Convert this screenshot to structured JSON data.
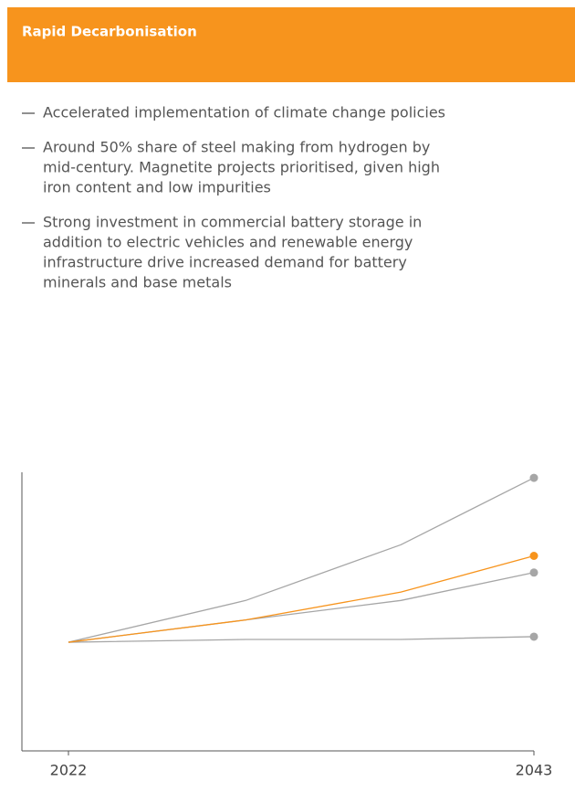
{
  "header": {
    "title": "Rapid Decarbonisation"
  },
  "bullets": [
    [
      "Accelerated implementation of climate change policies"
    ],
    [
      "Around 50% share of steel making from hydrogen by",
      "mid-century. Magnetite projects prioritised, given high",
      "iron content and low impurities"
    ],
    [
      "Strong investment in commercial battery storage in",
      "addition to electric vehicles and renewable energy",
      "infrastructure drive increased demand for battery",
      "minerals and base metals"
    ]
  ],
  "chart_data": {
    "type": "line",
    "x": [
      2022,
      2030,
      2037,
      2043
    ],
    "xlim": [
      2022,
      2043
    ],
    "xticks": [
      2022,
      2043
    ],
    "ylim": [
      0,
      100
    ],
    "series": [
      {
        "color": "#a6a6a6",
        "values": [
          39,
          54,
          74,
          98
        ]
      },
      {
        "color": "#a6a6a6",
        "values": [
          39,
          47,
          54,
          64
        ]
      },
      {
        "color": "#a6a6a6",
        "values": [
          39,
          40,
          40,
          41
        ]
      },
      {
        "color": "#f7941d",
        "values": [
          39,
          47,
          57,
          70
        ]
      }
    ]
  }
}
